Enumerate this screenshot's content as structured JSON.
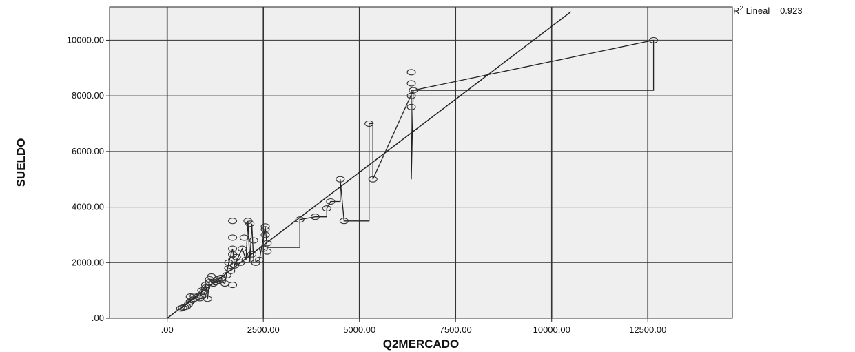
{
  "chart_data": {
    "type": "scatter",
    "xlabel": "Q2MERCADO",
    "ylabel": "SUELDO",
    "xlim": [
      -1500,
      14700
    ],
    "ylim": [
      0,
      11200
    ],
    "x_ticks": [
      0,
      2500,
      5000,
      7500,
      10000,
      12500
    ],
    "y_ticks": [
      0,
      2000,
      4000,
      6000,
      8000,
      10000
    ],
    "x_tick_labels": [
      ".00",
      "2500.00",
      "5000.00",
      "7500.00",
      "10000.00",
      "12500.00"
    ],
    "y_tick_labels": [
      ".00",
      "2000.00",
      "4000.00",
      "6000.00",
      "8000.00",
      "10000.00"
    ],
    "grid": true,
    "background": "#efefef",
    "points": [
      [
        350,
        350
      ],
      [
        400,
        380
      ],
      [
        450,
        400
      ],
      [
        500,
        420
      ],
      [
        550,
        500
      ],
      [
        600,
        600
      ],
      [
        600,
        780
      ],
      [
        650,
        650
      ],
      [
        700,
        700
      ],
      [
        700,
        800
      ],
      [
        750,
        750
      ],
      [
        800,
        780
      ],
      [
        850,
        720
      ],
      [
        900,
        800
      ],
      [
        900,
        1000
      ],
      [
        950,
        950
      ],
      [
        1000,
        1100
      ],
      [
        1000,
        1200
      ],
      [
        1050,
        700
      ],
      [
        1100,
        1300
      ],
      [
        1100,
        1400
      ],
      [
        1150,
        1500
      ],
      [
        1200,
        1250
      ],
      [
        1250,
        1300
      ],
      [
        1300,
        1400
      ],
      [
        1350,
        1350
      ],
      [
        1400,
        1450
      ],
      [
        1500,
        1250
      ],
      [
        1550,
        1550
      ],
      [
        1600,
        1800
      ],
      [
        1600,
        2000
      ],
      [
        1650,
        1700
      ],
      [
        1700,
        2100
      ],
      [
        1700,
        2300
      ],
      [
        1700,
        2500
      ],
      [
        1700,
        2900
      ],
      [
        1700,
        3500
      ],
      [
        1700,
        1200
      ],
      [
        1750,
        1900
      ],
      [
        1800,
        2200
      ],
      [
        1900,
        2000
      ],
      [
        1950,
        2500
      ],
      [
        2000,
        2900
      ],
      [
        2050,
        2100
      ],
      [
        2100,
        3500
      ],
      [
        2150,
        3400
      ],
      [
        2200,
        2300
      ],
      [
        2250,
        2800
      ],
      [
        2300,
        2000
      ],
      [
        2400,
        2100
      ],
      [
        2500,
        2500
      ],
      [
        2550,
        3000
      ],
      [
        2550,
        3200
      ],
      [
        2550,
        3300
      ],
      [
        2600,
        2700
      ],
      [
        2600,
        2400
      ],
      [
        3450,
        3550
      ],
      [
        3850,
        3650
      ],
      [
        4150,
        3950
      ],
      [
        4250,
        4200
      ],
      [
        4500,
        5000
      ],
      [
        4600,
        3500
      ],
      [
        5250,
        7000
      ],
      [
        5350,
        5000
      ],
      [
        6350,
        7600
      ],
      [
        6350,
        8000
      ],
      [
        6400,
        8200
      ],
      [
        6350,
        8450
      ],
      [
        6350,
        8850
      ],
      [
        12650,
        10000
      ]
    ],
    "connected_path": [
      [
        350,
        350
      ],
      [
        600,
        600
      ],
      [
        700,
        800
      ],
      [
        850,
        720
      ],
      [
        900,
        1000
      ],
      [
        1000,
        1200
      ],
      [
        1050,
        700
      ],
      [
        1100,
        1400
      ],
      [
        1200,
        1250
      ],
      [
        1350,
        1350
      ],
      [
        1500,
        1250
      ],
      [
        1600,
        2000
      ],
      [
        1700,
        2500
      ],
      [
        1750,
        1900
      ],
      [
        1950,
        2500
      ],
      [
        2050,
        2100
      ],
      [
        2100,
        3500
      ],
      [
        2150,
        2000
      ],
      [
        2200,
        3400
      ],
      [
        2250,
        2000
      ],
      [
        2400,
        2100
      ],
      [
        2550,
        3300
      ],
      [
        2600,
        2550
      ],
      [
        3450,
        2550
      ],
      [
        3450,
        3550
      ],
      [
        3850,
        3650
      ],
      [
        4150,
        3650
      ],
      [
        4150,
        3950
      ],
      [
        4250,
        4200
      ],
      [
        4500,
        4200
      ],
      [
        4500,
        5000
      ],
      [
        4600,
        3500
      ],
      [
        5250,
        3500
      ],
      [
        5250,
        7000
      ],
      [
        5350,
        7000
      ],
      [
        5350,
        5000
      ],
      [
        6400,
        8200
      ],
      [
        6350,
        5000
      ],
      [
        6350,
        8200
      ],
      [
        12650,
        8200
      ],
      [
        12650,
        10000
      ],
      [
        6400,
        8200
      ]
    ],
    "fit_line": {
      "intercept": 0,
      "slope": 1.05,
      "x_range": [
        0,
        10500
      ]
    },
    "annotation": {
      "prefix": "R",
      "sup": "2",
      "suffix": " Lineal = 0.923"
    }
  }
}
